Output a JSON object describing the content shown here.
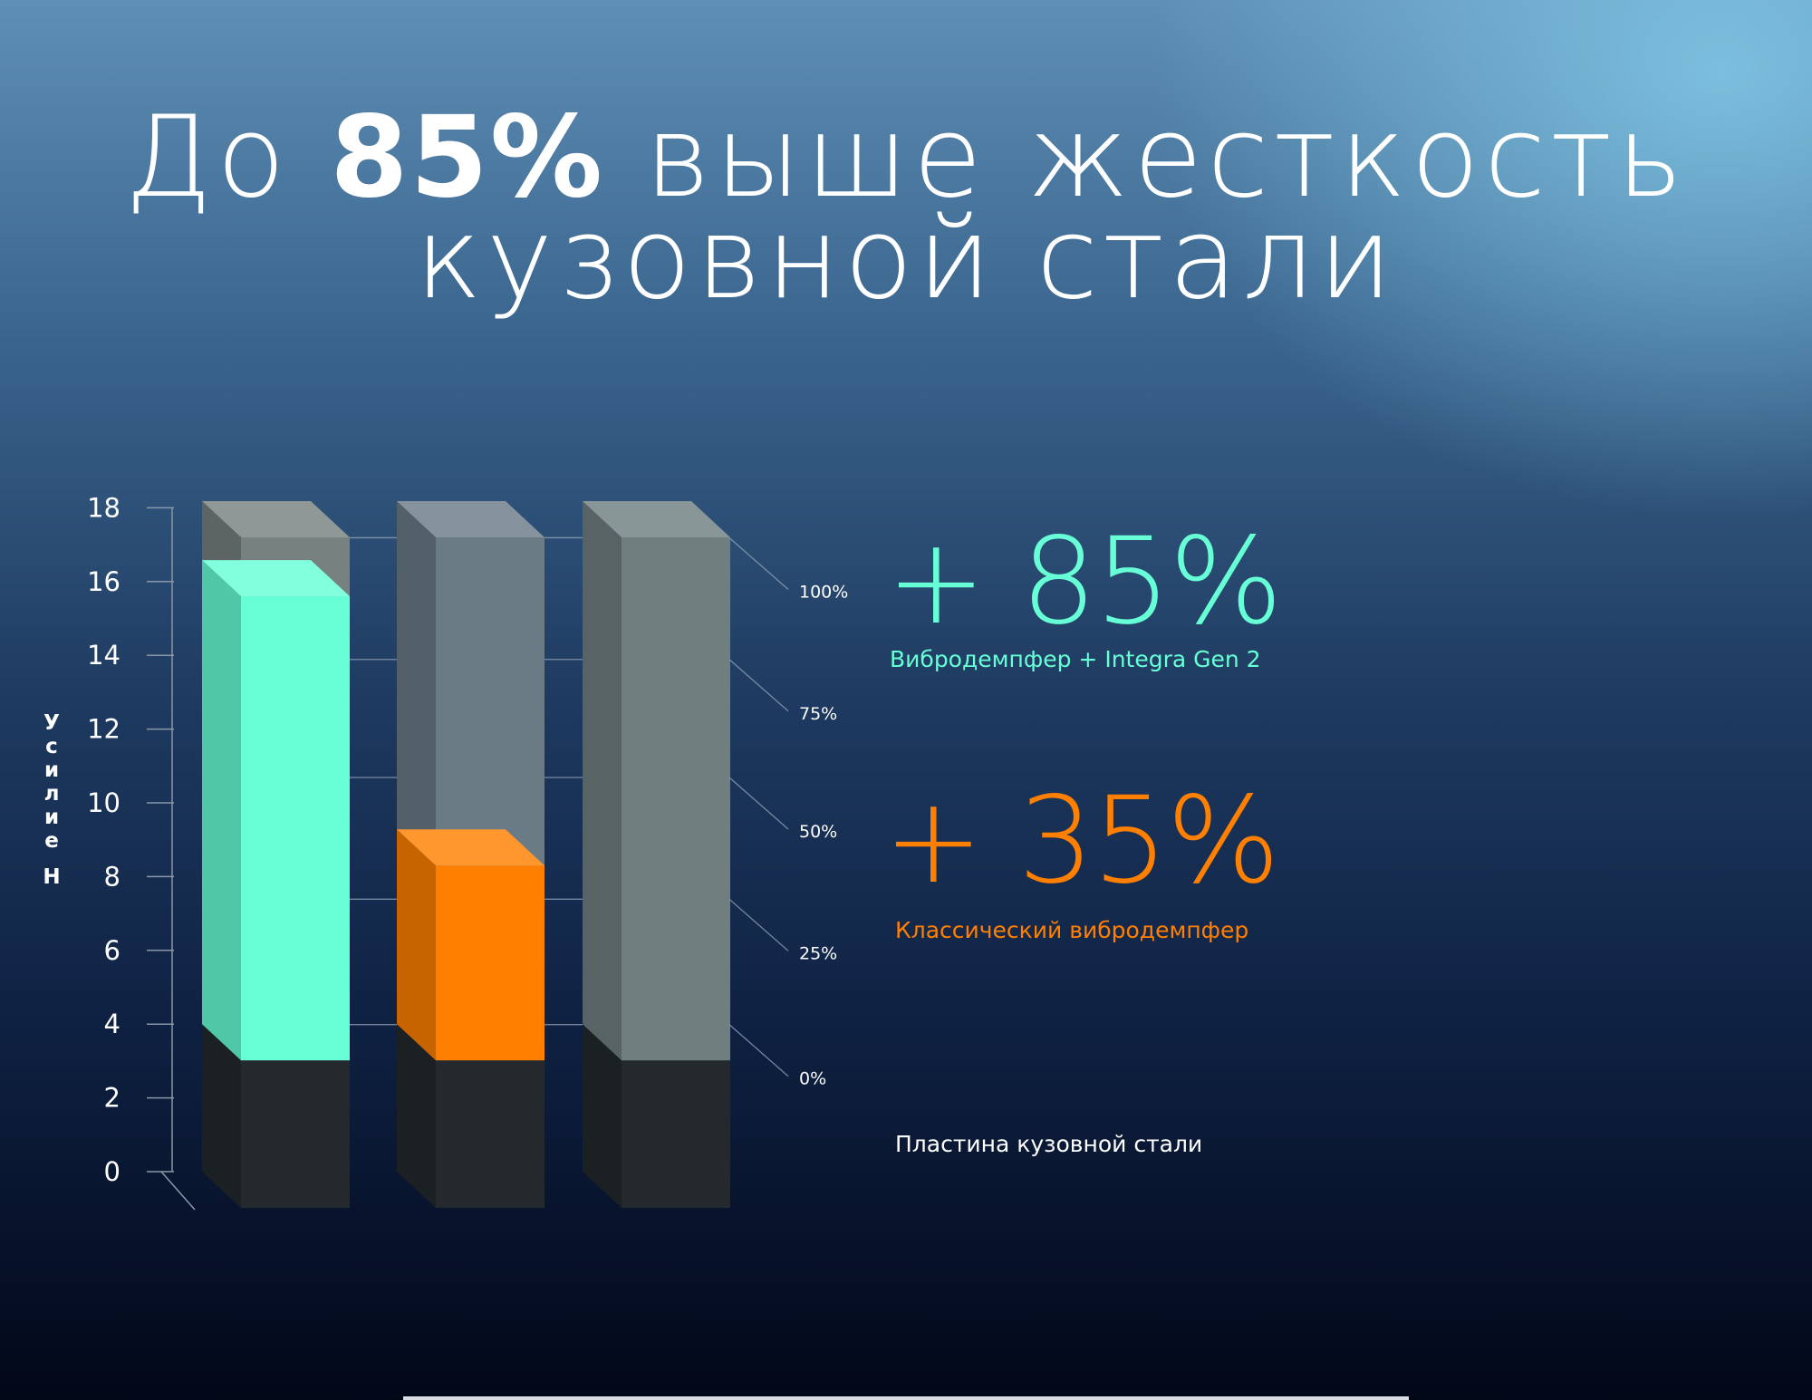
{
  "title": {
    "prefix": "До ",
    "highlight": "85%",
    "suffix": " выше жесткость",
    "line2": "кузовной стали"
  },
  "colors": {
    "turquoise": "#66ffd6",
    "orange": "#ff8000",
    "gray": "#6f7f80",
    "dark": "#23292c"
  },
  "chart_data": {
    "type": "bar",
    "stacked": true,
    "style": "3d",
    "ylabel": [
      "У",
      "с",
      "и",
      "л",
      "и",
      "е"
    ],
    "yunit": "Н",
    "ylim": [
      0,
      18
    ],
    "yticks": [
      0,
      2,
      4,
      6,
      8,
      10,
      12,
      14,
      16,
      18
    ],
    "secondary_ticks": [
      "0%",
      "25%",
      "50%",
      "75%",
      "100%"
    ],
    "bars": [
      {
        "name": "Вибродемпфер + Integra Gen 2",
        "base": 4,
        "value": 15.6,
        "top": 17.2,
        "color": "#66ffd6"
      },
      {
        "name": "Классический вибродемпфер",
        "base": 4,
        "value": 8.3,
        "top": 17.2,
        "color": "#ff8000"
      },
      {
        "name": "Пластина кузовной стали",
        "base": 4,
        "value": 4,
        "top": 17.2,
        "color": "#6f7f80"
      }
    ],
    "annotations": [
      {
        "value": "+ 85%",
        "label": "Вибродемпфер + Integra Gen 2",
        "color": "#66ffd6"
      },
      {
        "value": "+ 35%",
        "label": "Классический вибродемпфер",
        "color": "#ff8000"
      },
      {
        "value": "",
        "label": "Пластина кузовной стали",
        "color": "#ffffff"
      }
    ]
  }
}
